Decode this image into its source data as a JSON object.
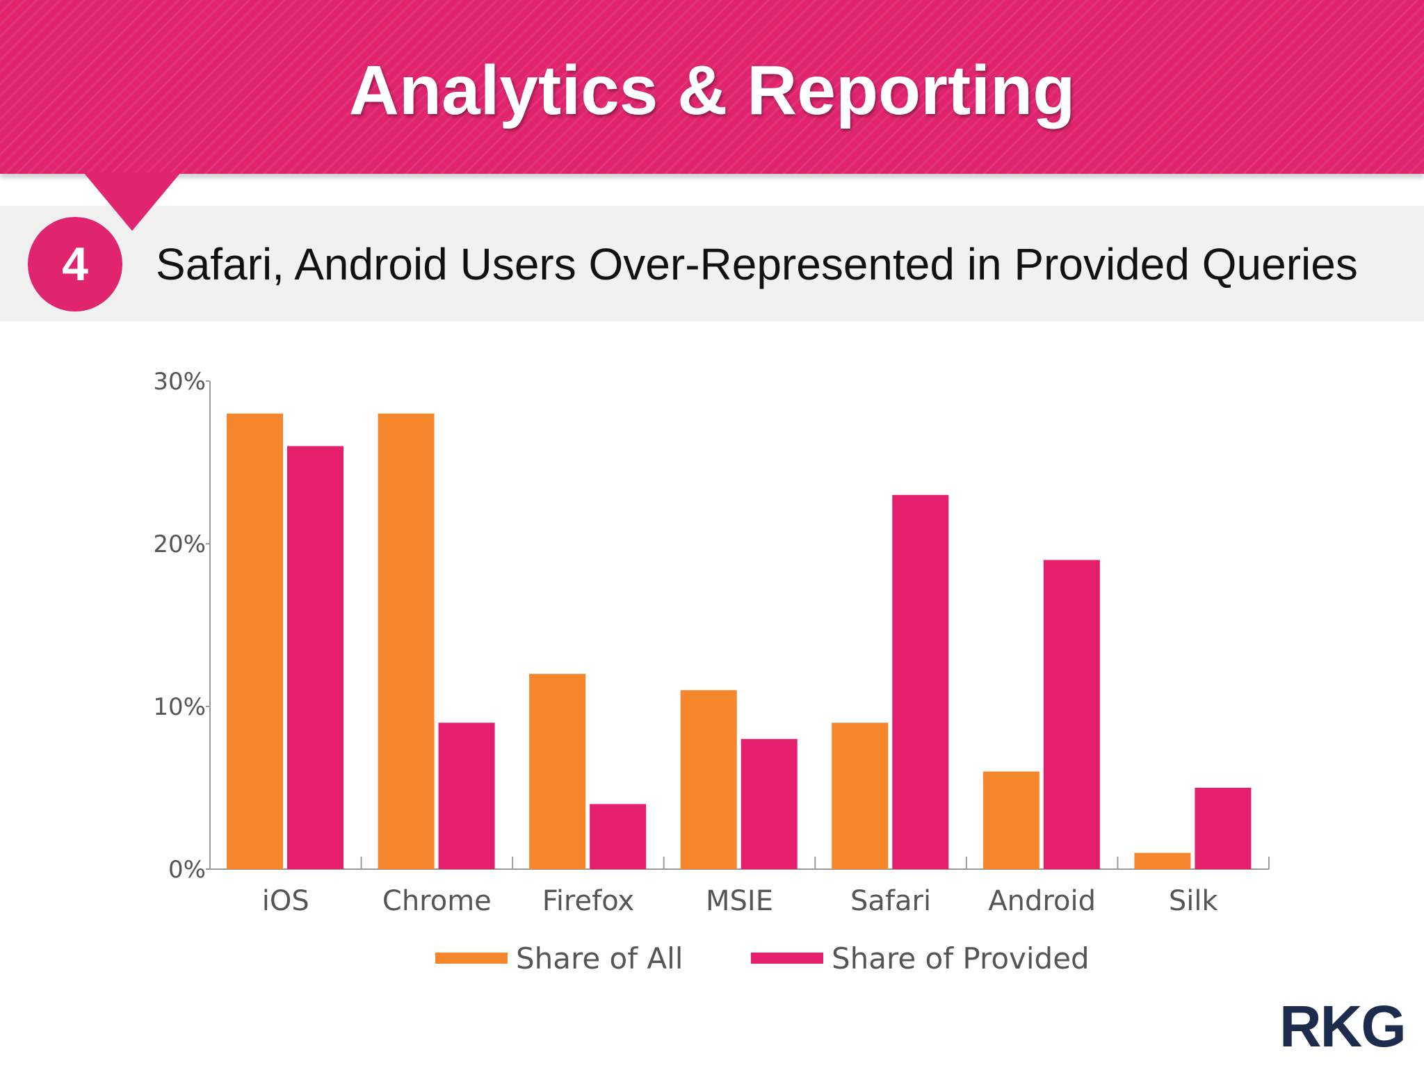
{
  "header": {
    "title": "Analytics & Reporting",
    "step_number": "4",
    "subtitle": "Safari, Android Users Over-Represented in Provided Queries"
  },
  "colors": {
    "accent": "#e0246f",
    "share_all": "#f5862b",
    "share_provided": "#e31f6e"
  },
  "chart_data": {
    "type": "bar",
    "title": "",
    "xlabel": "",
    "ylabel": "",
    "categories": [
      "iOS",
      "Chrome",
      "Firefox",
      "MSIE",
      "Safari",
      "Android",
      "Silk"
    ],
    "series": [
      {
        "name": "Share of All",
        "color": "#f5862b",
        "values": [
          28,
          28,
          12,
          11,
          9,
          6,
          1
        ]
      },
      {
        "name": "Share of Provided",
        "color": "#e31f6e",
        "values": [
          26,
          9,
          4,
          8,
          23,
          19,
          5
        ]
      }
    ],
    "ylim": [
      0,
      30
    ],
    "yticks": [
      0,
      10,
      20,
      30
    ],
    "ytick_labels": [
      "0%",
      "10%",
      "20%",
      "30%"
    ],
    "grid": false,
    "legend_position": "bottom"
  },
  "logo": {
    "text": "RKG"
  }
}
